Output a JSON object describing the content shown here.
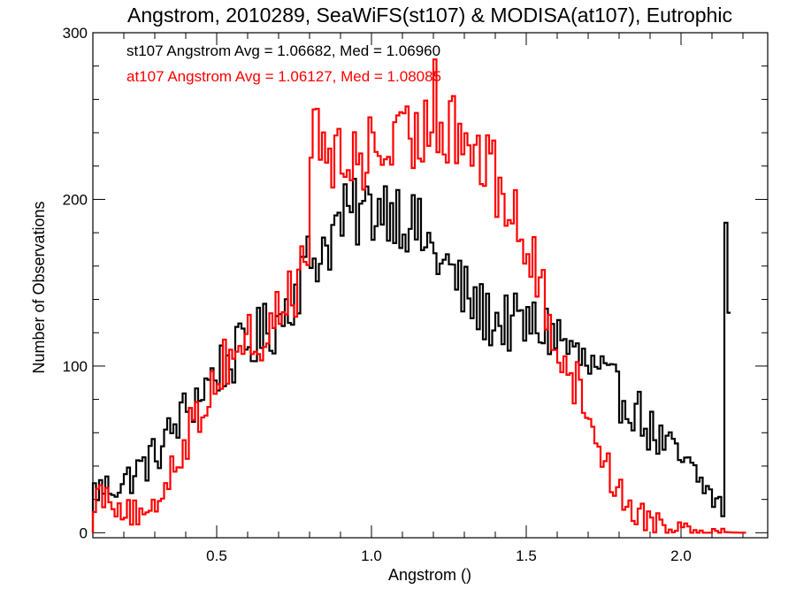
{
  "chart_data": {
    "type": "histogram",
    "title": "Angstrom, 2010289, SeaWiFS(st107) & MODISA(at107), Eutrophic",
    "xlabel": "Angstrom ()",
    "ylabel": "Number of Observations",
    "xlim": [
      0.1,
      2.28
    ],
    "ylim": [
      -3,
      300
    ],
    "xticks": [
      0.5,
      1.0,
      1.5,
      2.0
    ],
    "xtick_labels": [
      "0.5",
      "1.0",
      "1.5",
      "2.0"
    ],
    "yticks": [
      0,
      100,
      200,
      300
    ],
    "ytick_labels": [
      "0",
      "100",
      "200",
      "300"
    ],
    "bin_width": 0.01,
    "legend_placement": "top-left",
    "series": [
      {
        "name": "st107",
        "label": "st107 Angstrom Avg = 1.06682, Med = 1.06960",
        "color": "#000000",
        "knots": [
          [
            0.1,
            25
          ],
          [
            0.2,
            30
          ],
          [
            0.3,
            46
          ],
          [
            0.4,
            73
          ],
          [
            0.5,
            97
          ],
          [
            0.6,
            112
          ],
          [
            0.7,
            127
          ],
          [
            0.8,
            163
          ],
          [
            0.85,
            172
          ],
          [
            0.9,
            187
          ],
          [
            0.95,
            191
          ],
          [
            1.0,
            194
          ],
          [
            1.05,
            198
          ],
          [
            1.1,
            191
          ],
          [
            1.15,
            181
          ],
          [
            1.2,
            168
          ],
          [
            1.25,
            158
          ],
          [
            1.3,
            143
          ],
          [
            1.35,
            133
          ],
          [
            1.4,
            127
          ],
          [
            1.5,
            124
          ],
          [
            1.55,
            123
          ],
          [
            1.6,
            119
          ],
          [
            1.65,
            108
          ],
          [
            1.7,
            99
          ],
          [
            1.75,
            92
          ],
          [
            1.8,
            82
          ],
          [
            1.85,
            76
          ],
          [
            1.9,
            61
          ],
          [
            1.95,
            52
          ],
          [
            2.0,
            43
          ],
          [
            2.05,
            33
          ],
          [
            2.1,
            22
          ],
          [
            2.14,
            14
          ],
          [
            2.15,
            0
          ]
        ],
        "spikes": [
          [
            2.145,
            186
          ],
          [
            2.15,
            132
          ]
        ]
      },
      {
        "name": "at107",
        "label": "at107 Angstrom Avg = 1.06127, Med = 1.08085",
        "color": "#ff0000",
        "knots": [
          [
            0.1,
            22
          ],
          [
            0.15,
            24
          ],
          [
            0.2,
            14
          ],
          [
            0.25,
            10
          ],
          [
            0.28,
            6
          ],
          [
            0.3,
            14
          ],
          [
            0.35,
            38
          ],
          [
            0.4,
            56
          ],
          [
            0.45,
            74
          ],
          [
            0.5,
            95
          ],
          [
            0.55,
            108
          ],
          [
            0.6,
            117
          ],
          [
            0.65,
            112
          ],
          [
            0.7,
            132
          ],
          [
            0.75,
            148
          ],
          [
            0.79,
            156
          ],
          [
            0.81,
            240
          ],
          [
            0.85,
            232
          ],
          [
            0.9,
            218
          ],
          [
            0.95,
            225
          ],
          [
            1.0,
            230
          ],
          [
            1.05,
            230
          ],
          [
            1.1,
            232
          ],
          [
            1.15,
            237
          ],
          [
            1.2,
            246
          ],
          [
            1.25,
            246
          ],
          [
            1.3,
            237
          ],
          [
            1.35,
            226
          ],
          [
            1.4,
            211
          ],
          [
            1.45,
            194
          ],
          [
            1.5,
            171
          ],
          [
            1.55,
            145
          ],
          [
            1.6,
            117
          ],
          [
            1.65,
            93
          ],
          [
            1.7,
            75
          ],
          [
            1.75,
            45
          ],
          [
            1.8,
            24
          ],
          [
            1.85,
            13
          ],
          [
            1.9,
            8
          ],
          [
            1.95,
            6
          ],
          [
            2.0,
            4
          ],
          [
            2.05,
            2
          ],
          [
            2.1,
            1
          ],
          [
            2.15,
            0.3
          ],
          [
            2.2,
            0
          ]
        ],
        "spikes": [
          [
            0.81,
            254
          ],
          [
            1.2,
            284
          ],
          [
            1.26,
            262
          ]
        ]
      }
    ]
  }
}
